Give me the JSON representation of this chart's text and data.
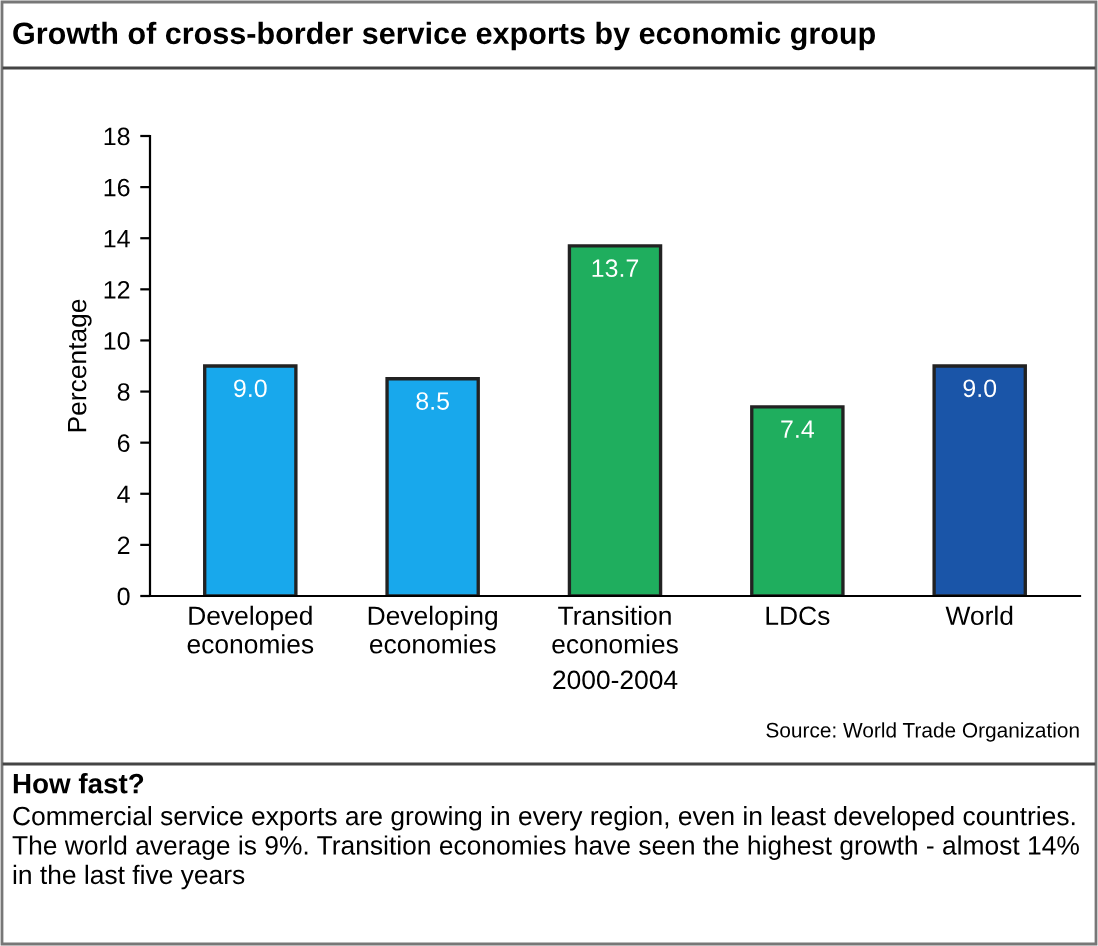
{
  "chart_data": {
    "type": "bar",
    "title": "Growth of cross-border service exports by economic group",
    "xlabel": "2000-2004",
    "ylabel": "Percentage",
    "categories": [
      "Developed\neconomies",
      "Developing\neconomies",
      "Transition\neconomies",
      "LDCs",
      "World"
    ],
    "values": [
      9.0,
      8.5,
      13.7,
      7.4,
      9.0
    ],
    "colors": [
      "#18a8ec",
      "#18a8ec",
      "#1fae5e",
      "#1fae5e",
      "#1a55a8"
    ],
    "value_labels": [
      "9.0",
      "8.5",
      "13.7",
      "7.4",
      "9.0"
    ],
    "ylim": [
      0,
      18
    ],
    "yticks": [
      0,
      2,
      4,
      6,
      8,
      10,
      12,
      14,
      16,
      18
    ],
    "grid": false,
    "annotations": [
      "Source: World Trade Organization",
      "How fast?",
      "Commercial service exports are growing in every region, even in least developed countries. The world average is 9%. Transition economies have seen the highest growth - almost 14% in the last five years"
    ]
  }
}
